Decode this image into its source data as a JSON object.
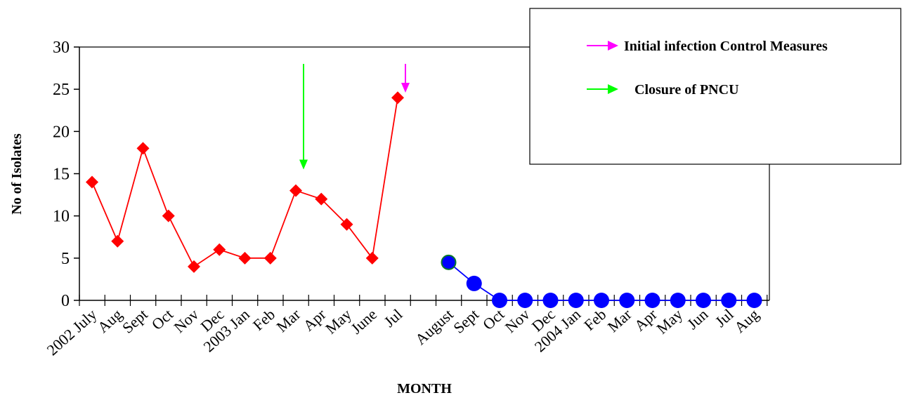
{
  "chart_data": {
    "type": "line",
    "xlabel": "MONTH",
    "ylabel": "No of Isolates",
    "ylim": [
      0,
      30
    ],
    "yticks": [
      0,
      5,
      10,
      15,
      20,
      25,
      30
    ],
    "categories": [
      "2002 July",
      "Aug",
      "Sept",
      "Oct",
      "Nov",
      "Dec",
      "2003 Jan",
      "Feb",
      "Mar",
      "Apr",
      "May",
      "June",
      "Jul",
      "",
      "August",
      "Sept",
      "Oct",
      "Nov",
      "Dec",
      "2004 Jan",
      "Feb",
      "Mar",
      "Apr",
      "May",
      "Jun",
      "Jul",
      "Aug"
    ],
    "series": [
      {
        "color": "#ff0000",
        "marker": "diamond",
        "values": [
          14,
          7,
          18,
          10,
          4,
          6,
          5,
          5,
          13,
          12,
          9,
          5,
          24,
          null,
          null,
          null,
          null,
          null,
          null,
          null,
          null,
          null,
          null,
          null,
          null,
          null,
          null
        ]
      },
      {
        "color": "#0000ff",
        "marker": "circle",
        "values": [
          null,
          null,
          null,
          null,
          null,
          null,
          null,
          null,
          null,
          null,
          null,
          null,
          null,
          null,
          4.5,
          2,
          0,
          0,
          0,
          0,
          0,
          0,
          0,
          0,
          0,
          0,
          0
        ]
      }
    ],
    "annotations": [
      {
        "type": "arrow",
        "at_category": "Mar",
        "color": "#00ff00",
        "from_y": 28,
        "to_y": 15.5
      },
      {
        "type": "arrow",
        "at_category": "Jul",
        "color": "#ff00ff",
        "from_y": 28,
        "to_y": 24.6
      }
    ],
    "legend": {
      "placement": "top-right",
      "items": [
        {
          "label": "Initial infection Control Measures",
          "color": "#ff00ff",
          "marker": "arrow"
        },
        {
          "label": "Closure of PNCU",
          "color": "#00ff00",
          "marker": "arrow"
        }
      ]
    },
    "grid": false
  }
}
